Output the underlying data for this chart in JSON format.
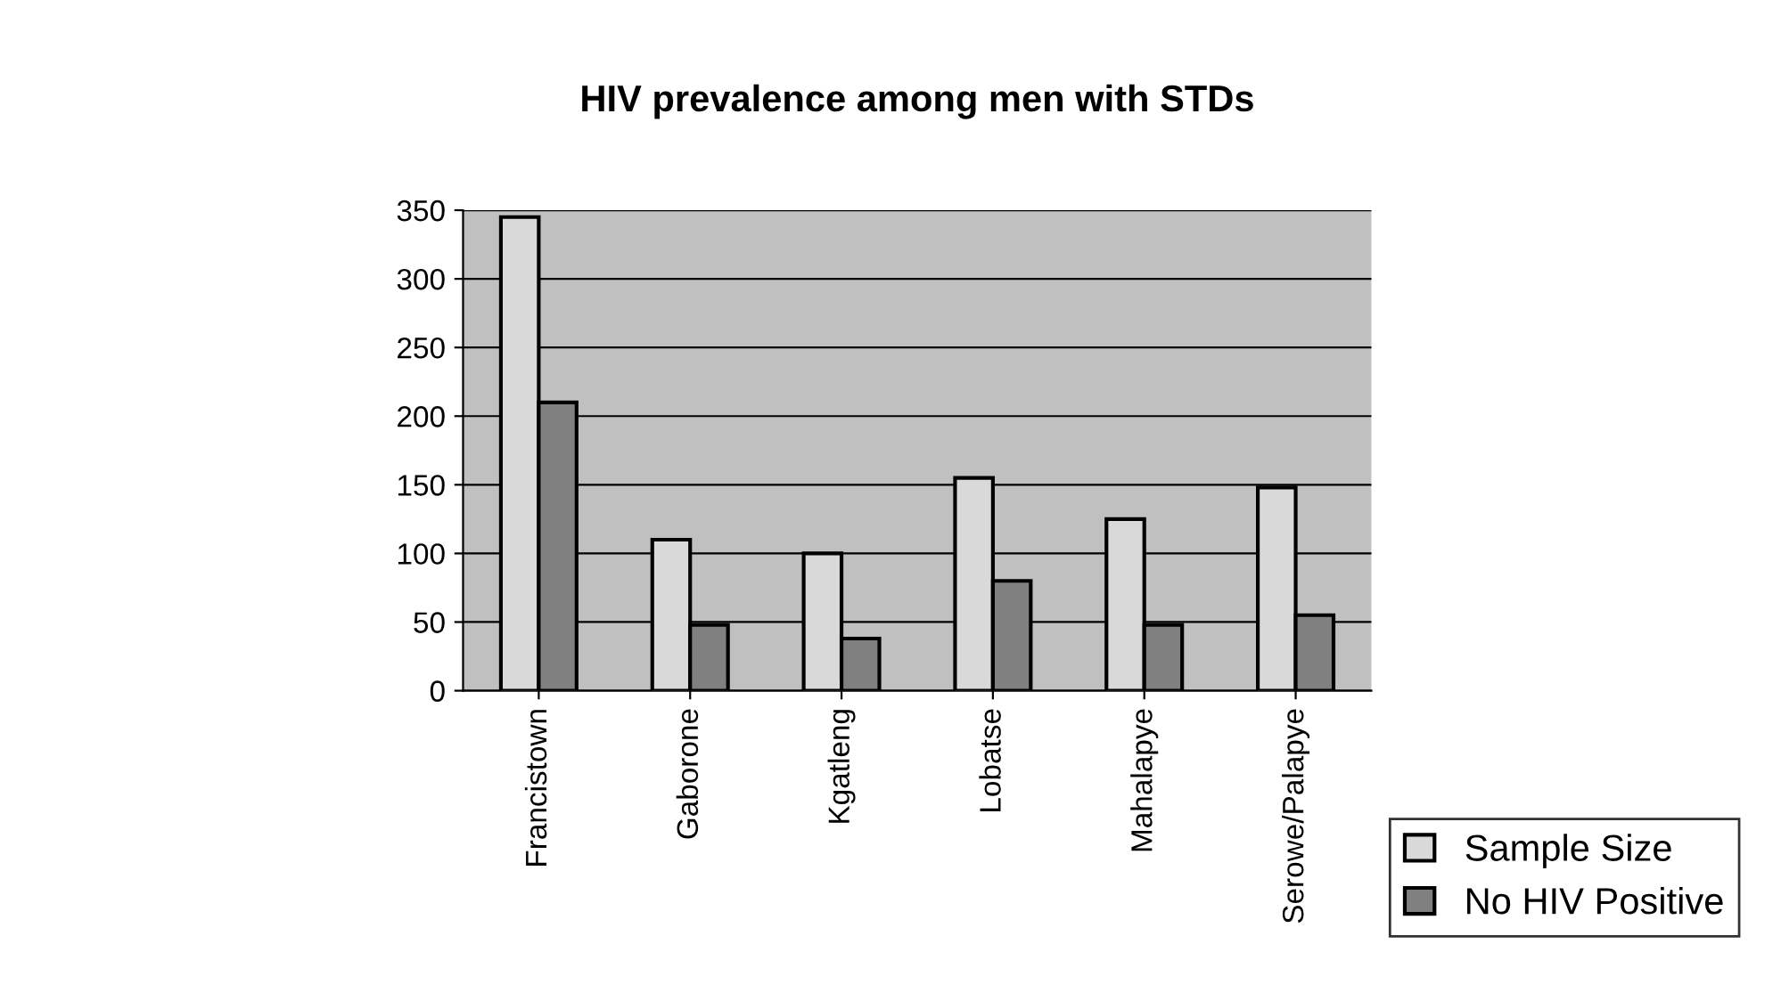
{
  "chart_data": {
    "type": "bar",
    "title": "HIV prevalence among men with STDs",
    "categories": [
      "Francistown",
      "Gaborone",
      "Kgatleng",
      "Lobatse",
      "Mahalapye",
      "Serowe/Palapye"
    ],
    "series": [
      {
        "name": "Sample Size",
        "color": "#d9d9d9",
        "values": [
          345,
          110,
          100,
          155,
          125,
          148
        ]
      },
      {
        "name": "No HIV Positive",
        "color": "#808080",
        "values": [
          210,
          48,
          38,
          80,
          48,
          55
        ]
      }
    ],
    "ylim": [
      0,
      350
    ],
    "yticks": [
      0,
      50,
      100,
      150,
      200,
      250,
      300,
      350
    ],
    "grid": "y",
    "legend": "bottom right"
  }
}
